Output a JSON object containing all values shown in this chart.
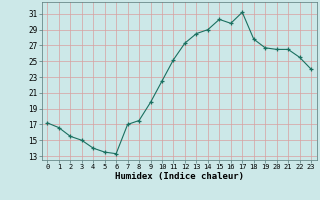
{
  "x": [
    0,
    1,
    2,
    3,
    4,
    5,
    6,
    7,
    8,
    9,
    10,
    11,
    12,
    13,
    14,
    15,
    16,
    17,
    18,
    19,
    20,
    21,
    22,
    23
  ],
  "y": [
    17.2,
    16.6,
    15.5,
    15.0,
    14.0,
    13.5,
    13.3,
    17.0,
    17.5,
    19.8,
    22.5,
    25.2,
    27.3,
    28.5,
    29.0,
    30.3,
    29.8,
    31.2,
    27.8,
    26.7,
    26.5,
    26.5,
    25.5,
    24.0
  ],
  "line_color": "#1a7060",
  "marker": "+",
  "bg_color": "#cce8e8",
  "grid_color": "#d8a0a0",
  "xlabel": "Humidex (Indice chaleur)",
  "yticks": [
    13,
    15,
    17,
    19,
    21,
    23,
    25,
    27,
    29,
    31
  ],
  "xticks": [
    0,
    1,
    2,
    3,
    4,
    5,
    6,
    7,
    8,
    9,
    10,
    11,
    12,
    13,
    14,
    15,
    16,
    17,
    18,
    19,
    20,
    21,
    22,
    23
  ],
  "xlim": [
    -0.5,
    23.5
  ],
  "ylim": [
    12.5,
    32.5
  ]
}
